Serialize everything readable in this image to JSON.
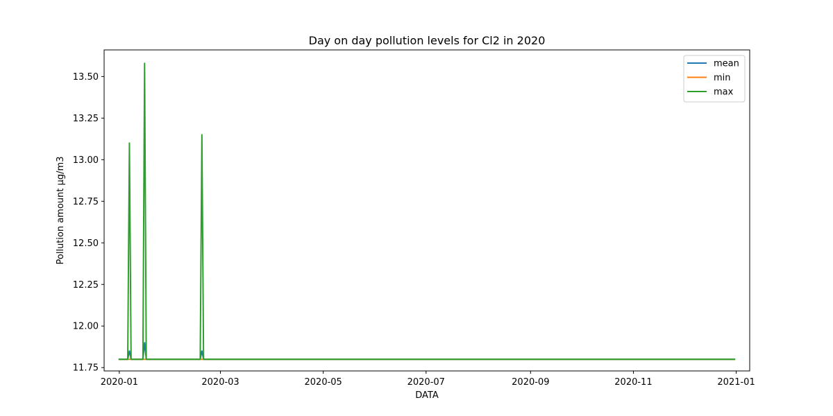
{
  "chart_data": {
    "type": "line",
    "title": "Day on day pollution levels for Cl2 in 2020",
    "xlabel": "DATA",
    "ylabel": "Pollution amount µg/m3",
    "xlim": [
      "2019-12-23",
      "2021-01-09"
    ],
    "ylim": [
      11.73,
      13.66
    ],
    "x_ticks": [
      "2020-01",
      "2020-03",
      "2020-05",
      "2020-07",
      "2020-09",
      "2020-11",
      "2021-01"
    ],
    "x_tick_dates": [
      "2020-01-01",
      "2020-03-01",
      "2020-05-01",
      "2020-07-01",
      "2020-09-01",
      "2020-11-01",
      "2021-01-01"
    ],
    "y_ticks": [
      11.75,
      12.0,
      12.25,
      12.5,
      12.75,
      13.0,
      13.25,
      13.5
    ],
    "y_tick_labels": [
      "11.75",
      "12.00",
      "12.25",
      "12.50",
      "12.75",
      "13.00",
      "13.25",
      "13.50"
    ],
    "grid": false,
    "legend_position": "top-right",
    "series": [
      {
        "name": "mean",
        "color": "#1f77b4",
        "points": [
          [
            "2020-01-01",
            11.8
          ],
          [
            "2020-01-06",
            11.8
          ],
          [
            "2020-01-07",
            11.85
          ],
          [
            "2020-01-08",
            11.8
          ],
          [
            "2020-01-15",
            11.8
          ],
          [
            "2020-01-16",
            11.9
          ],
          [
            "2020-01-17",
            11.8
          ],
          [
            "2020-02-18",
            11.8
          ],
          [
            "2020-02-19",
            11.85
          ],
          [
            "2020-02-20",
            11.8
          ],
          [
            "2020-12-31",
            11.8
          ]
        ]
      },
      {
        "name": "min",
        "color": "#ff7f0e",
        "points": [
          [
            "2020-01-01",
            11.8
          ],
          [
            "2020-12-31",
            11.8
          ]
        ]
      },
      {
        "name": "max",
        "color": "#2ca02c",
        "points": [
          [
            "2020-01-01",
            11.8
          ],
          [
            "2020-01-06",
            11.8
          ],
          [
            "2020-01-07",
            13.1
          ],
          [
            "2020-01-08",
            11.8
          ],
          [
            "2020-01-15",
            11.8
          ],
          [
            "2020-01-16",
            13.58
          ],
          [
            "2020-01-17",
            11.8
          ],
          [
            "2020-02-18",
            11.8
          ],
          [
            "2020-02-19",
            13.15
          ],
          [
            "2020-02-20",
            11.8
          ],
          [
            "2020-12-31",
            11.8
          ]
        ]
      }
    ]
  }
}
